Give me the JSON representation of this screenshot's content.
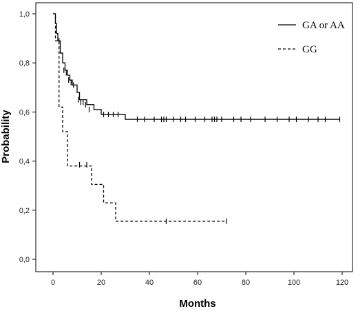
{
  "chart_data": {
    "type": "line",
    "title": "",
    "xlabel": "Months",
    "ylabel": "Probability",
    "xlim": [
      0,
      120
    ],
    "ylim": [
      0,
      1
    ],
    "x_ticks": [
      0,
      20,
      40,
      60,
      80,
      100,
      120
    ],
    "y_ticks": [
      0,
      0.2,
      0.4,
      0.6,
      0.8,
      1.0
    ],
    "y_tick_labels": [
      "0,0",
      "0,2",
      "0,4",
      "0,6",
      "0,8",
      "1,0"
    ],
    "grid": false,
    "legend_position": "top-right",
    "series": [
      {
        "name": "GA or AA",
        "line_style": "solid",
        "color": "#000000",
        "steps": [
          [
            0,
            1.0
          ],
          [
            1,
            0.96
          ],
          [
            1.5,
            0.92
          ],
          [
            2,
            0.89
          ],
          [
            3,
            0.84
          ],
          [
            4,
            0.8
          ],
          [
            5,
            0.77
          ],
          [
            6,
            0.75
          ],
          [
            7,
            0.73
          ],
          [
            8,
            0.71
          ],
          [
            10,
            0.68
          ],
          [
            11,
            0.65
          ],
          [
            14,
            0.63
          ],
          [
            17,
            0.61
          ],
          [
            20,
            0.59
          ],
          [
            30,
            0.57
          ],
          [
            119,
            0.57
          ]
        ],
        "censored": [
          [
            2.5,
            0.89
          ],
          [
            4.5,
            0.77
          ],
          [
            5.5,
            0.76
          ],
          [
            6.5,
            0.73
          ],
          [
            7.5,
            0.72
          ],
          [
            8.5,
            0.71
          ],
          [
            10.5,
            0.65
          ],
          [
            11.5,
            0.64
          ],
          [
            12.5,
            0.64
          ],
          [
            13.5,
            0.63
          ],
          [
            15,
            0.61
          ],
          [
            21,
            0.59
          ],
          [
            23,
            0.59
          ],
          [
            25,
            0.59
          ],
          [
            27,
            0.59
          ],
          [
            35,
            0.57
          ],
          [
            38,
            0.57
          ],
          [
            42,
            0.57
          ],
          [
            45,
            0.57
          ],
          [
            46,
            0.57
          ],
          [
            47,
            0.57
          ],
          [
            50,
            0.57
          ],
          [
            53,
            0.57
          ],
          [
            55,
            0.57
          ],
          [
            59,
            0.57
          ],
          [
            63,
            0.57
          ],
          [
            66,
            0.57
          ],
          [
            67,
            0.57
          ],
          [
            68,
            0.57
          ],
          [
            70,
            0.57
          ],
          [
            75,
            0.57
          ],
          [
            78,
            0.57
          ],
          [
            82,
            0.57
          ],
          [
            88,
            0.57
          ],
          [
            93,
            0.57
          ],
          [
            98,
            0.57
          ],
          [
            101,
            0.57
          ],
          [
            106,
            0.57
          ],
          [
            110,
            0.57
          ],
          [
            113,
            0.57
          ],
          [
            119,
            0.57
          ]
        ]
      },
      {
        "name": "GG",
        "line_style": "dashed",
        "color": "#000000",
        "steps": [
          [
            0,
            1.0
          ],
          [
            1,
            0.89
          ],
          [
            2.5,
            0.62
          ],
          [
            4,
            0.52
          ],
          [
            6,
            0.38
          ],
          [
            16,
            0.305
          ],
          [
            21,
            0.23
          ],
          [
            26,
            0.155
          ],
          [
            72,
            0.155
          ]
        ],
        "censored": [
          [
            11,
            0.385
          ],
          [
            14,
            0.385
          ],
          [
            47,
            0.155
          ],
          [
            72,
            0.155
          ]
        ]
      }
    ]
  }
}
